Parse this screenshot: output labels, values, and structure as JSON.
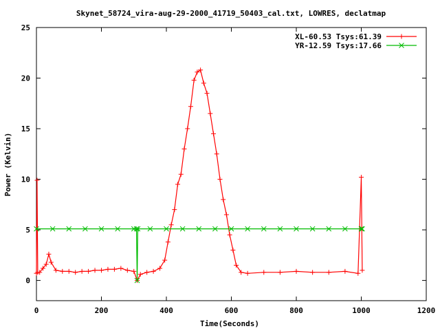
{
  "chart_data": {
    "type": "line",
    "title": "Skynet_58724_vira-aug-29-2000_41719_50403_cal.txt, LOWRES, declatmap",
    "xlabel": "Time(Seconds)",
    "ylabel": "Power (Kelvin)",
    "xlim": [
      0,
      1200
    ],
    "ylim": [
      -2,
      25
    ],
    "xticks": [
      0,
      200,
      400,
      600,
      800,
      1000,
      1200
    ],
    "yticks": [
      0,
      5,
      10,
      15,
      20,
      25
    ],
    "grid": false,
    "legend_position": "top-right",
    "series": [
      {
        "name": "XL-60.53 Tsys:61.39",
        "color": "#ff0000",
        "marker": "plus",
        "points": [
          [
            0,
            0.7
          ],
          [
            2,
            9.9
          ],
          [
            4,
            0.8
          ],
          [
            10,
            0.8
          ],
          [
            20,
            1.2
          ],
          [
            30,
            1.6
          ],
          [
            38,
            2.6
          ],
          [
            45,
            1.8
          ],
          [
            60,
            1.0
          ],
          [
            80,
            0.9
          ],
          [
            100,
            0.9
          ],
          [
            120,
            0.8
          ],
          [
            140,
            0.9
          ],
          [
            160,
            0.9
          ],
          [
            180,
            1.0
          ],
          [
            200,
            1.0
          ],
          [
            220,
            1.1
          ],
          [
            240,
            1.1
          ],
          [
            260,
            1.2
          ],
          [
            280,
            1.0
          ],
          [
            300,
            0.9
          ],
          [
            310,
            0.0
          ],
          [
            320,
            0.6
          ],
          [
            340,
            0.8
          ],
          [
            360,
            0.9
          ],
          [
            380,
            1.2
          ],
          [
            395,
            2.0
          ],
          [
            405,
            3.8
          ],
          [
            415,
            5.5
          ],
          [
            425,
            7.0
          ],
          [
            435,
            9.5
          ],
          [
            445,
            10.5
          ],
          [
            455,
            13.0
          ],
          [
            465,
            15.0
          ],
          [
            475,
            17.2
          ],
          [
            485,
            19.8
          ],
          [
            495,
            20.6
          ],
          [
            505,
            20.8
          ],
          [
            515,
            19.5
          ],
          [
            525,
            18.5
          ],
          [
            535,
            16.5
          ],
          [
            545,
            14.5
          ],
          [
            555,
            12.5
          ],
          [
            565,
            10.0
          ],
          [
            575,
            8.0
          ],
          [
            585,
            6.5
          ],
          [
            595,
            4.5
          ],
          [
            605,
            3.0
          ],
          [
            615,
            1.5
          ],
          [
            630,
            0.8
          ],
          [
            650,
            0.7
          ],
          [
            700,
            0.8
          ],
          [
            750,
            0.8
          ],
          [
            800,
            0.9
          ],
          [
            850,
            0.8
          ],
          [
            900,
            0.8
          ],
          [
            950,
            0.9
          ],
          [
            990,
            0.7
          ],
          [
            1000,
            10.2
          ],
          [
            1003,
            1.0
          ]
        ]
      },
      {
        "name": "YR-12.59 Tsys:17.66",
        "color": "#00bb00",
        "marker": "cross",
        "points": [
          [
            0,
            5.1
          ],
          [
            50,
            5.1
          ],
          [
            100,
            5.1
          ],
          [
            150,
            5.1
          ],
          [
            200,
            5.1
          ],
          [
            250,
            5.1
          ],
          [
            300,
            5.1
          ],
          [
            308,
            5.1
          ],
          [
            310,
            0.0
          ],
          [
            312,
            5.1
          ],
          [
            350,
            5.1
          ],
          [
            400,
            5.1
          ],
          [
            450,
            5.1
          ],
          [
            500,
            5.1
          ],
          [
            550,
            5.1
          ],
          [
            600,
            5.1
          ],
          [
            650,
            5.1
          ],
          [
            700,
            5.1
          ],
          [
            750,
            5.1
          ],
          [
            800,
            5.1
          ],
          [
            850,
            5.1
          ],
          [
            900,
            5.1
          ],
          [
            950,
            5.1
          ],
          [
            1000,
            5.1
          ],
          [
            1003,
            5.1
          ]
        ]
      }
    ]
  }
}
